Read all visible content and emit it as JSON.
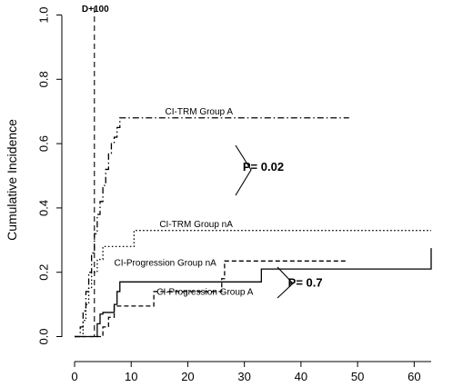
{
  "chart_data": {
    "type": "line",
    "title": "",
    "xlabel": "",
    "ylabel": "Cumulative Incidence",
    "xlim": [
      -2,
      65
    ],
    "ylim": [
      -0.02,
      1.05
    ],
    "xticks": [
      0,
      10,
      20,
      30,
      40,
      50,
      60
    ],
    "yticks": [
      0.0,
      0.2,
      0.4,
      0.6,
      0.8,
      1.0
    ],
    "ytick_labels": [
      "0.0",
      "0.2",
      "0.4",
      "0.6",
      "0.8",
      "1.0"
    ],
    "grid": false,
    "legend": "none",
    "step": true,
    "vline": {
      "x": 3.5,
      "label": "D+100",
      "style": "dashed"
    },
    "series": [
      {
        "name": "CI-TRM Group A",
        "style": "dashdot",
        "x": [
          0,
          1,
          1.5,
          2,
          2.5,
          3,
          3.5,
          4,
          4.5,
          5,
          5.5,
          6,
          6.5,
          7,
          7.5,
          8,
          48.5
        ],
        "y": [
          0,
          0.03,
          0.08,
          0.14,
          0.2,
          0.26,
          0.32,
          0.38,
          0.42,
          0.47,
          0.52,
          0.57,
          0.6,
          0.62,
          0.65,
          0.68,
          0.68
        ]
      },
      {
        "name": "CI-TRM Group nA",
        "style": "dotted",
        "x": [
          0,
          1.5,
          2,
          2.5,
          3,
          4,
          5,
          10.5,
          63
        ],
        "y": [
          0,
          0.05,
          0.1,
          0.15,
          0.2,
          0.24,
          0.28,
          0.33,
          0.33
        ]
      },
      {
        "name": "CI-Progression Group nA",
        "style": "solid",
        "x": [
          0,
          4,
          4.5,
          5,
          7,
          7.5,
          8,
          33,
          63
        ],
        "y": [
          0,
          0.04,
          0.07,
          0.075,
          0.1,
          0.14,
          0.17,
          0.21,
          0.275
        ]
      },
      {
        "name": "CI-Progression Group A",
        "style": "dashed",
        "x": [
          0,
          5,
          6,
          7,
          14,
          26,
          26.5,
          48
        ],
        "y": [
          0,
          0.03,
          0.06,
          0.095,
          0.14,
          0.18,
          0.235,
          0.235
        ]
      }
    ],
    "annotations": [
      {
        "text": "CI-TRM Group A",
        "x": 16,
        "y": 0.69
      },
      {
        "text": "CI-TRM Group nA",
        "x": 15,
        "y": 0.34
      },
      {
        "text": "CI-Progression Group nA",
        "x": 7,
        "y": 0.22
      },
      {
        "text": "CI-Progression Group A",
        "x": 14.5,
        "y": 0.13
      }
    ],
    "pvalues": [
      {
        "text": "P= 0.02",
        "x": 31,
        "y": 0.53
      },
      {
        "text": "P= 0.7",
        "x": 39,
        "y": 0.17
      }
    ]
  }
}
